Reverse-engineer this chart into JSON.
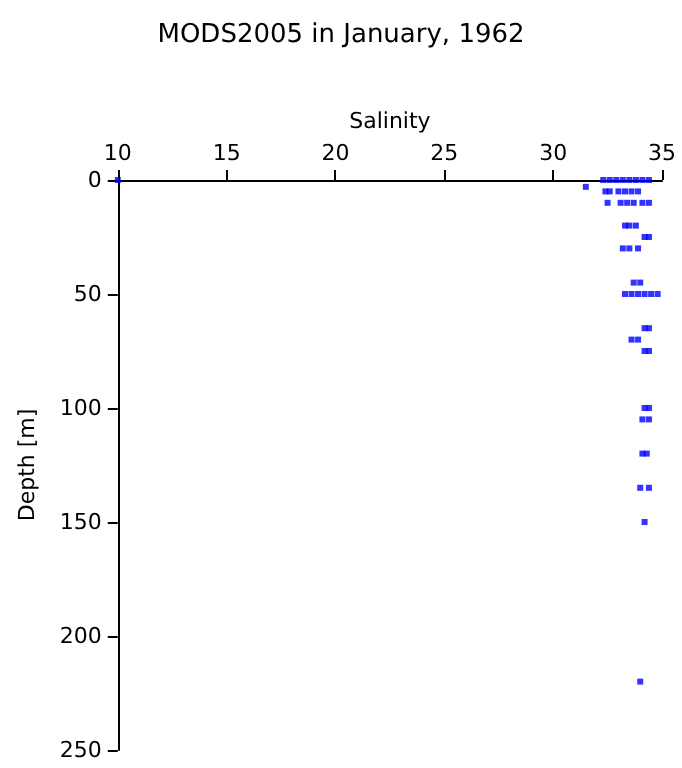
{
  "chart_data": {
    "type": "scatter",
    "title": "MODS2005 in January, 1962",
    "xlabel": "Salinity",
    "ylabel": "Depth [m]",
    "x": [
      10,
      32.3,
      32.6,
      32.9,
      33.2,
      33.5,
      33.8,
      34.1,
      34.4,
      31.5,
      32.4,
      32.6,
      33.0,
      33.3,
      33.6,
      33.9,
      32.5,
      33.1,
      33.4,
      33.7,
      34.1,
      34.4,
      33.3,
      33.5,
      33.8,
      34.2,
      34.4,
      33.2,
      33.5,
      33.9,
      33.7,
      34.0,
      33.3,
      33.6,
      33.9,
      34.2,
      34.5,
      34.8,
      34.2,
      34.4,
      33.6,
      33.9,
      34.2,
      34.4,
      34.2,
      34.4,
      34.1,
      34.4,
      34.1,
      34.3,
      34.0,
      34.4,
      34.2,
      34.0
    ],
    "values": [
      0,
      0,
      0,
      0,
      0,
      0,
      0,
      0,
      0,
      3,
      5,
      5,
      5,
      5,
      5,
      5,
      10,
      10,
      10,
      10,
      10,
      10,
      20,
      20,
      20,
      25,
      25,
      30,
      30,
      30,
      45,
      45,
      50,
      50,
      50,
      50,
      50,
      50,
      65,
      65,
      70,
      70,
      75,
      75,
      100,
      100,
      105,
      105,
      120,
      120,
      135,
      135,
      150,
      220
    ],
    "color": "#0000ff",
    "marker": "square",
    "xlim": [
      10,
      35
    ],
    "xticks": [
      10,
      15,
      20,
      25,
      30,
      35
    ],
    "ylim": [
      250,
      0
    ],
    "yticks": [
      0,
      50,
      100,
      150,
      200,
      250
    ],
    "grid": false
  }
}
